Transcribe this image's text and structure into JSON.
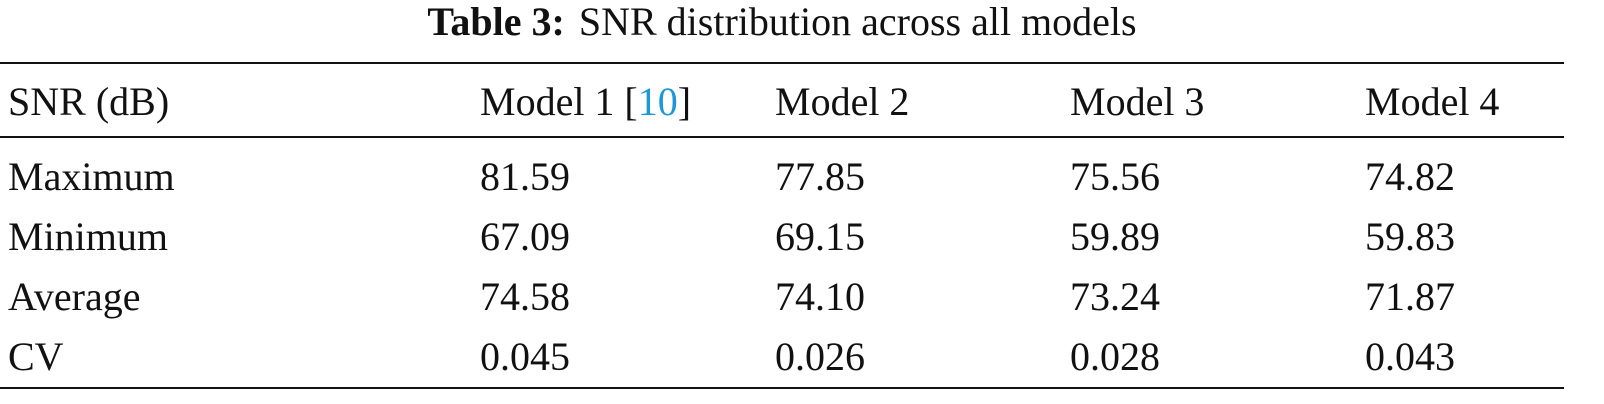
{
  "caption": {
    "label": "Table 3:",
    "text": "SNR distribution across all models"
  },
  "table": {
    "header": [
      "SNR (dB)",
      {
        "text": "Model 1 [",
        "citation": "10",
        "close": "]"
      },
      "Model 2",
      "Model 3",
      "Model 4"
    ],
    "rows": [
      [
        "Maximum",
        "81.59",
        "77.85",
        "75.56",
        "74.82"
      ],
      [
        "Minimum",
        "67.09",
        "69.15",
        "59.89",
        "59.83"
      ],
      [
        "Average",
        "74.58",
        "74.10",
        "73.24",
        "71.87"
      ],
      [
        "CV",
        "0.045",
        "0.026",
        "0.028",
        "0.043"
      ]
    ]
  }
}
